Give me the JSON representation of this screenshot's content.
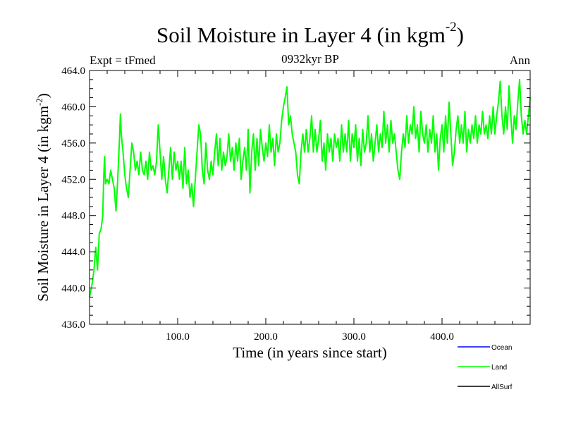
{
  "chart_data": {
    "type": "line",
    "title": "Soil Moisture in Layer 4 (in kgm",
    "title_sup": "-2",
    "title_end": ")",
    "subtitle": "0932kyr BP",
    "left_string": "Expt = tFmed",
    "right_string": "Ann",
    "xlabel": "Time (in years since start)",
    "ylabel": "Soil Moisture in Layer 4 (in kgm",
    "ylabel_sup": "-2",
    "ylabel_end": ")",
    "xlim": [
      0,
      500
    ],
    "ylim": [
      436,
      464
    ],
    "x_ticks": [
      100,
      200,
      300,
      400
    ],
    "x_tick_labels": [
      "100.0",
      "200.0",
      "300.0",
      "400.0"
    ],
    "y_ticks": [
      436,
      440,
      444,
      448,
      452,
      456,
      460,
      464
    ],
    "y_tick_labels": [
      "436.0",
      "440.0",
      "444.0",
      "448.0",
      "452.0",
      "456.0",
      "460.0",
      "464.0"
    ],
    "legend": [
      {
        "name": "Ocean",
        "color": "#0000ff"
      },
      {
        "name": "Land",
        "color": "#00ff00"
      },
      {
        "name": "AllSurf",
        "color": "#000000"
      }
    ],
    "series": [
      {
        "name": "Land",
        "color": "#00ff00",
        "points": [
          [
            0,
            439
          ],
          [
            3,
            440.5
          ],
          [
            5,
            442
          ],
          [
            7,
            444.5
          ],
          [
            9,
            442
          ],
          [
            11,
            446
          ],
          [
            13,
            446.5
          ],
          [
            15,
            448
          ],
          [
            16,
            452
          ],
          [
            17,
            454.5
          ],
          [
            18,
            451.5
          ],
          [
            20,
            452
          ],
          [
            22,
            451.5
          ],
          [
            24,
            453
          ],
          [
            26,
            452
          ],
          [
            28,
            451
          ],
          [
            30,
            448.5
          ],
          [
            32,
            452
          ],
          [
            34,
            456.5
          ],
          [
            35,
            459.2
          ],
          [
            36,
            457
          ],
          [
            38,
            455
          ],
          [
            40,
            452.5
          ],
          [
            42,
            451
          ],
          [
            44,
            450
          ],
          [
            46,
            453
          ],
          [
            48,
            456
          ],
          [
            50,
            455
          ],
          [
            52,
            453
          ],
          [
            54,
            454
          ],
          [
            56,
            452.5
          ],
          [
            58,
            455
          ],
          [
            60,
            453
          ],
          [
            62,
            452.5
          ],
          [
            64,
            454
          ],
          [
            66,
            452
          ],
          [
            68,
            455
          ],
          [
            70,
            453
          ],
          [
            72,
            453.5
          ],
          [
            74,
            452.5
          ],
          [
            76,
            454
          ],
          [
            78,
            458
          ],
          [
            80,
            455
          ],
          [
            82,
            452
          ],
          [
            84,
            454.5
          ],
          [
            86,
            452
          ],
          [
            88,
            450.5
          ],
          [
            90,
            453
          ],
          [
            92,
            455.5
          ],
          [
            94,
            452
          ],
          [
            96,
            455
          ],
          [
            98,
            453
          ],
          [
            100,
            454
          ],
          [
            102,
            452
          ],
          [
            104,
            454
          ],
          [
            106,
            451
          ],
          [
            108,
            455.5
          ],
          [
            110,
            451.5
          ],
          [
            112,
            453
          ],
          [
            114,
            450
          ],
          [
            116,
            451.5
          ],
          [
            118,
            449
          ],
          [
            120,
            452
          ],
          [
            122,
            455
          ],
          [
            124,
            458
          ],
          [
            126,
            457
          ],
          [
            128,
            453
          ],
          [
            130,
            451.5
          ],
          [
            132,
            456
          ],
          [
            134,
            453
          ],
          [
            136,
            452
          ],
          [
            138,
            454
          ],
          [
            140,
            452.5
          ],
          [
            142,
            455
          ],
          [
            144,
            457
          ],
          [
            146,
            453.5
          ],
          [
            148,
            456.5
          ],
          [
            150,
            453
          ],
          [
            152,
            455
          ],
          [
            154,
            453.5
          ],
          [
            156,
            454.5
          ],
          [
            158,
            457
          ],
          [
            160,
            454
          ],
          [
            162,
            455.5
          ],
          [
            164,
            453
          ],
          [
            166,
            456
          ],
          [
            168,
            454
          ],
          [
            170,
            456.5
          ],
          [
            172,
            452
          ],
          [
            174,
            454
          ],
          [
            176,
            455.5
          ],
          [
            178,
            453
          ],
          [
            180,
            457.5
          ],
          [
            182,
            450.5
          ],
          [
            184,
            455
          ],
          [
            186,
            457
          ],
          [
            188,
            453
          ],
          [
            190,
            456.5
          ],
          [
            192,
            453.5
          ],
          [
            194,
            457.5
          ],
          [
            196,
            455.5
          ],
          [
            198,
            454
          ],
          [
            200,
            456
          ],
          [
            202,
            454.5
          ],
          [
            204,
            458
          ],
          [
            206,
            455
          ],
          [
            208,
            456.5
          ],
          [
            210,
            453.5
          ],
          [
            212,
            457
          ],
          [
            214,
            455
          ],
          [
            216,
            456
          ],
          [
            218,
            458.5
          ],
          [
            220,
            460
          ],
          [
            222,
            461
          ],
          [
            224,
            462.2
          ],
          [
            226,
            458
          ],
          [
            228,
            459
          ],
          [
            230,
            457
          ],
          [
            232,
            456
          ],
          [
            234,
            455
          ],
          [
            236,
            452.5
          ],
          [
            238,
            451.5
          ],
          [
            240,
            455
          ],
          [
            242,
            457
          ],
          [
            244,
            455
          ],
          [
            246,
            457.5
          ],
          [
            248,
            455
          ],
          [
            250,
            456.5
          ],
          [
            252,
            459
          ],
          [
            254,
            455
          ],
          [
            256,
            457.5
          ],
          [
            258,
            455
          ],
          [
            260,
            456.5
          ],
          [
            262,
            458.5
          ],
          [
            264,
            454
          ],
          [
            266,
            456
          ],
          [
            268,
            453
          ],
          [
            270,
            457
          ],
          [
            272,
            455
          ],
          [
            274,
            456.5
          ],
          [
            276,
            454
          ],
          [
            278,
            457
          ],
          [
            280,
            455.5
          ],
          [
            282,
            456.5
          ],
          [
            284,
            454
          ],
          [
            286,
            458
          ],
          [
            288,
            455
          ],
          [
            290,
            457
          ],
          [
            292,
            455
          ],
          [
            294,
            458.5
          ],
          [
            296,
            454
          ],
          [
            298,
            457
          ],
          [
            300,
            455.5
          ],
          [
            302,
            458
          ],
          [
            304,
            454
          ],
          [
            306,
            456.5
          ],
          [
            308,
            453.5
          ],
          [
            310,
            457.5
          ],
          [
            312,
            455
          ],
          [
            314,
            456
          ],
          [
            316,
            459
          ],
          [
            318,
            455
          ],
          [
            320,
            457
          ],
          [
            322,
            454
          ],
          [
            324,
            456
          ],
          [
            326,
            458
          ],
          [
            328,
            455
          ],
          [
            330,
            457
          ],
          [
            332,
            455.5
          ],
          [
            334,
            459.5
          ],
          [
            336,
            456
          ],
          [
            338,
            458
          ],
          [
            340,
            455
          ],
          [
            342,
            458.5
          ],
          [
            344,
            456
          ],
          [
            346,
            457
          ],
          [
            348,
            455
          ],
          [
            350,
            453
          ],
          [
            352,
            452
          ],
          [
            354,
            455
          ],
          [
            356,
            457
          ],
          [
            358,
            455.5
          ],
          [
            360,
            459
          ],
          [
            362,
            456
          ],
          [
            364,
            458
          ],
          [
            366,
            457
          ],
          [
            368,
            460
          ],
          [
            370,
            456.5
          ],
          [
            372,
            458
          ],
          [
            374,
            455
          ],
          [
            376,
            459.5
          ],
          [
            378,
            457
          ],
          [
            380,
            456
          ],
          [
            382,
            458
          ],
          [
            384,
            455
          ],
          [
            386,
            457.5
          ],
          [
            388,
            456
          ],
          [
            390,
            459
          ],
          [
            392,
            455
          ],
          [
            394,
            457
          ],
          [
            396,
            453
          ],
          [
            398,
            456.5
          ],
          [
            400,
            458
          ],
          [
            402,
            455
          ],
          [
            404,
            459
          ],
          [
            406,
            456
          ],
          [
            408,
            460.5
          ],
          [
            410,
            457
          ],
          [
            412,
            453.5
          ],
          [
            414,
            455
          ],
          [
            416,
            457.5
          ],
          [
            418,
            459
          ],
          [
            420,
            456
          ],
          [
            422,
            458
          ],
          [
            424,
            456
          ],
          [
            426,
            459.5
          ],
          [
            428,
            455
          ],
          [
            430,
            457.5
          ],
          [
            432,
            456
          ],
          [
            434,
            458
          ],
          [
            436,
            456.5
          ],
          [
            438,
            459
          ],
          [
            440,
            456
          ],
          [
            442,
            458
          ],
          [
            444,
            457
          ],
          [
            446,
            459.5
          ],
          [
            448,
            457
          ],
          [
            450,
            458
          ],
          [
            452,
            456.5
          ],
          [
            454,
            459
          ],
          [
            456,
            457
          ],
          [
            458,
            460
          ],
          [
            460,
            457
          ],
          [
            462,
            459
          ],
          [
            464,
            460.5
          ],
          [
            466,
            462.8
          ],
          [
            468,
            459
          ],
          [
            470,
            457
          ],
          [
            472,
            460
          ],
          [
            474,
            457.5
          ],
          [
            476,
            462.3
          ],
          [
            478,
            459
          ],
          [
            480,
            456
          ],
          [
            482,
            459
          ],
          [
            484,
            457.5
          ],
          [
            486,
            460.5
          ],
          [
            488,
            463
          ],
          [
            490,
            459
          ],
          [
            492,
            457
          ],
          [
            494,
            458.5
          ],
          [
            496,
            457
          ],
          [
            498,
            459
          ],
          [
            500,
            461
          ]
        ]
      }
    ]
  }
}
